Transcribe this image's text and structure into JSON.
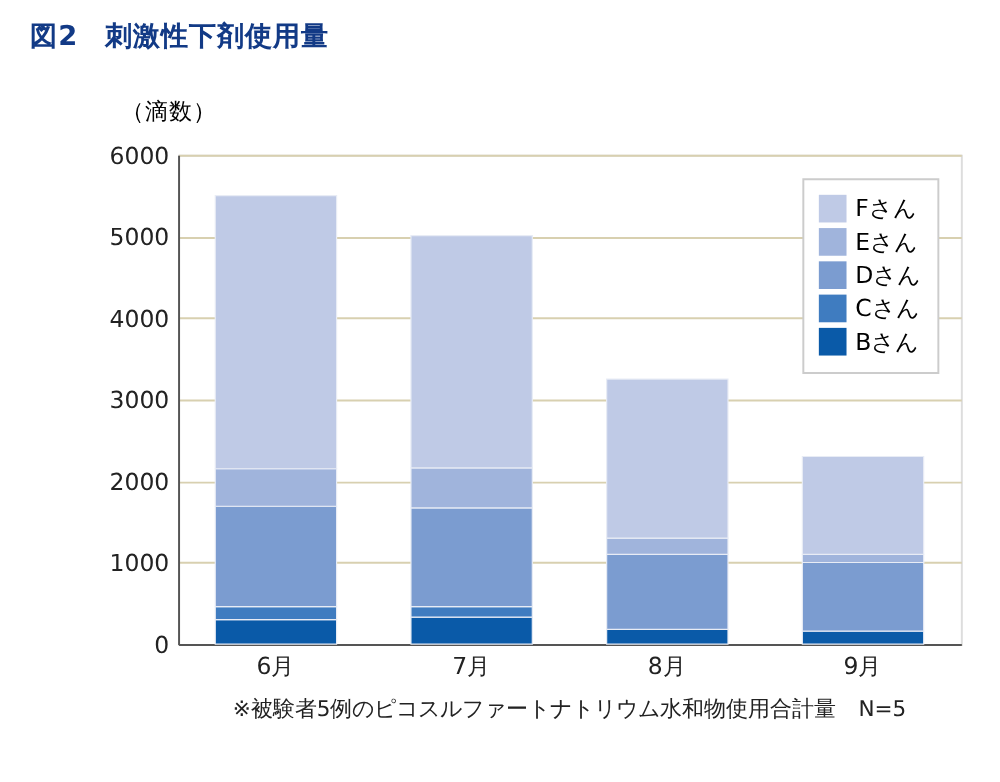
{
  "chart_data": {
    "type": "bar",
    "title": "図2　刺激性下剤使用量",
    "ylabel": "（滴数）",
    "categories": [
      "6月",
      "7月",
      "8月",
      "9月"
    ],
    "stacked": true,
    "ylim": [
      0,
      6000
    ],
    "yticks": [
      0,
      1000,
      2000,
      3000,
      4000,
      5000,
      6000
    ],
    "grid": "y",
    "legend": "top right",
    "series": [
      {
        "name": "Bさん",
        "color": "#0a5aa8",
        "values": [
          300,
          330,
          180,
          160
        ]
      },
      {
        "name": "Cさん",
        "color": "#3f7cc0",
        "values": [
          160,
          130,
          0,
          0
        ]
      },
      {
        "name": "Dさん",
        "color": "#7b9cd0",
        "values": [
          1230,
          1210,
          920,
          840
        ]
      },
      {
        "name": "Eさん",
        "color": "#a0b4dc",
        "values": [
          460,
          490,
          200,
          100
        ]
      },
      {
        "name": "Fさん",
        "color": "#bfcae6",
        "values": [
          3350,
          2850,
          1950,
          1200
        ]
      }
    ],
    "annotations": [
      "※被験者5例のピコスルファートナトリウム水和物使用合計量　N=5"
    ]
  }
}
